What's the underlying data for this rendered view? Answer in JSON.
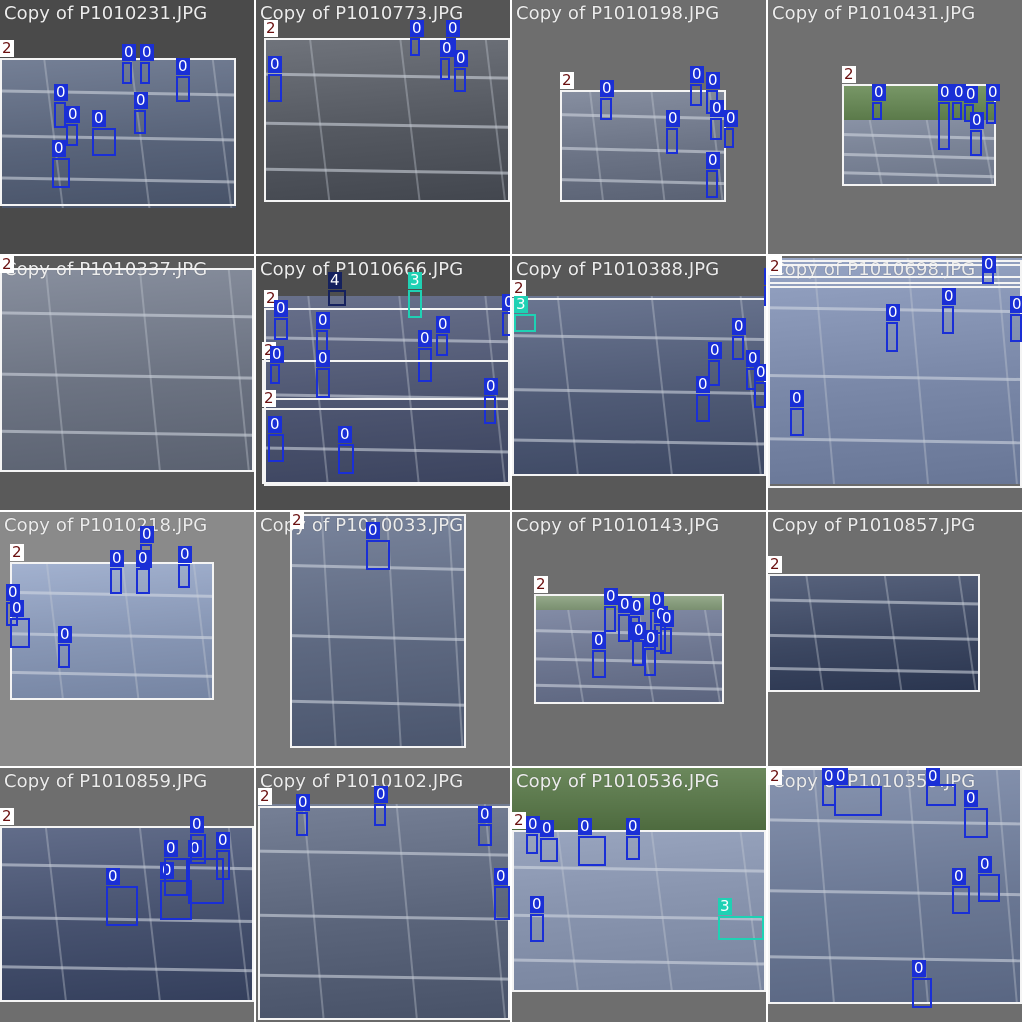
{
  "grid": {
    "columns": 4,
    "rows": 4
  },
  "classes": {
    "0": {
      "color": "#1a2fd6",
      "label_bg": "#1a2fd6",
      "label_fg": "#ffffff"
    },
    "2": {
      "color": "#f4f4f4",
      "label_bg": "#ffffff",
      "label_fg": "#6b1010"
    },
    "3": {
      "color": "#1fd1b4",
      "label_bg": "#1fd1b4",
      "label_fg": "#ffffff"
    },
    "4": {
      "color": "#15215e",
      "label_bg": "#15215e",
      "label_fg": "#ffffff"
    }
  },
  "tiles": [
    {
      "filename": "Copy of P1010231.JPG",
      "tile_bg": "#4a4a4a",
      "panel": "#59647a",
      "sky": "",
      "detections": [
        {
          "cls": "2",
          "label": "2"
        },
        {
          "cls": "0",
          "label": "0"
        },
        {
          "cls": "0",
          "label": "0"
        },
        {
          "cls": "0",
          "label": "0"
        },
        {
          "cls": "0",
          "label": "0"
        },
        {
          "cls": "0",
          "label": "0"
        },
        {
          "cls": "0",
          "label": "0"
        },
        {
          "cls": "0",
          "label": "0"
        },
        {
          "cls": "0",
          "label": "0"
        }
      ]
    },
    {
      "filename": "Copy of P1010773.JPG",
      "tile_bg": "#555555",
      "panel": "#545860",
      "sky": "",
      "detections": [
        {
          "cls": "2",
          "label": "2"
        },
        {
          "cls": "0",
          "label": "0"
        },
        {
          "cls": "0",
          "label": "0"
        },
        {
          "cls": "0",
          "label": "0"
        },
        {
          "cls": "0",
          "label": "0"
        },
        {
          "cls": "0",
          "label": "0"
        }
      ]
    },
    {
      "filename": "Copy of P1010198.JPG",
      "tile_bg": "#6e6e6e",
      "panel": "#6b7385",
      "sky": "",
      "detections": [
        {
          "cls": "2",
          "label": "2"
        },
        {
          "cls": "0",
          "label": "0"
        },
        {
          "cls": "0",
          "label": "0"
        },
        {
          "cls": "0",
          "label": "0"
        },
        {
          "cls": "0",
          "label": "0"
        },
        {
          "cls": "0",
          "label": "0"
        },
        {
          "cls": "0",
          "label": "0"
        },
        {
          "cls": "0",
          "label": "0"
        }
      ]
    },
    {
      "filename": "Copy of P1010431.JPG",
      "tile_bg": "#707070",
      "panel": "#7d8699",
      "sky": "#5b7a4a",
      "detections": [
        {
          "cls": "2",
          "label": "2"
        },
        {
          "cls": "0",
          "label": "0"
        },
        {
          "cls": "0",
          "label": "0"
        },
        {
          "cls": "0",
          "label": "0"
        },
        {
          "cls": "0",
          "label": "0"
        },
        {
          "cls": "0",
          "label": "0"
        },
        {
          "cls": "0",
          "label": "0"
        }
      ]
    },
    {
      "filename": "Copy of P1010337.JPG",
      "tile_bg": "#5a5a5a",
      "panel": "#6c7382",
      "sky": "",
      "detections": [
        {
          "cls": "2",
          "label": "2"
        }
      ]
    },
    {
      "filename": "Copy of P1010666.JPG",
      "tile_bg": "#4e4e4e",
      "panel": "#4d5570",
      "sky": "#3a4450",
      "detections": [
        {
          "cls": "2",
          "label": "2"
        },
        {
          "cls": "4",
          "label": "4"
        },
        {
          "cls": "3",
          "label": "3"
        },
        {
          "cls": "0",
          "label": "0"
        },
        {
          "cls": "0",
          "label": "0"
        },
        {
          "cls": "0",
          "label": "0"
        },
        {
          "cls": "0",
          "label": "0"
        },
        {
          "cls": "2",
          "label": "2"
        },
        {
          "cls": "0",
          "label": "0"
        },
        {
          "cls": "0",
          "label": "0"
        },
        {
          "cls": "0",
          "label": "0"
        },
        {
          "cls": "2",
          "label": "2"
        },
        {
          "cls": "0",
          "label": "0"
        },
        {
          "cls": "0",
          "label": "0"
        },
        {
          "cls": "0",
          "label": "0"
        }
      ]
    },
    {
      "filename": "Copy of P1010388.JPG",
      "tile_bg": "#585858",
      "panel": "#4f5a75",
      "sky": "",
      "detections": [
        {
          "cls": "2",
          "label": "2"
        },
        {
          "cls": "3",
          "label": "3"
        },
        {
          "cls": "0",
          "label": "0"
        },
        {
          "cls": "0",
          "label": "0"
        },
        {
          "cls": "0",
          "label": "0"
        },
        {
          "cls": "0",
          "label": "0"
        },
        {
          "cls": "0",
          "label": "0"
        },
        {
          "cls": "0",
          "label": "0"
        }
      ]
    },
    {
      "filename": "Copy of P1010698.JPG",
      "tile_bg": "#6a6a6a",
      "panel": "#7a88a8",
      "sky": "",
      "detections": [
        {
          "cls": "2",
          "label": "2"
        },
        {
          "cls": "2",
          "label": "2"
        },
        {
          "cls": "2",
          "label": "2"
        },
        {
          "cls": "0",
          "label": "0"
        },
        {
          "cls": "0",
          "label": "0"
        },
        {
          "cls": "0",
          "label": "0"
        },
        {
          "cls": "0",
          "label": "0"
        },
        {
          "cls": "0",
          "label": "0"
        }
      ]
    },
    {
      "filename": "Copy of P1010218.JPG",
      "tile_bg": "#8a8a8a",
      "panel": "#8796b4",
      "sky": "",
      "detections": [
        {
          "cls": "2",
          "label": "2"
        },
        {
          "cls": "0",
          "label": "0"
        },
        {
          "cls": "0",
          "label": "0"
        },
        {
          "cls": "0",
          "label": "0"
        },
        {
          "cls": "0",
          "label": "0"
        },
        {
          "cls": "0",
          "label": "0"
        },
        {
          "cls": "0",
          "label": "0"
        },
        {
          "cls": "0",
          "label": "0"
        }
      ]
    },
    {
      "filename": "Copy of P1010033.JPG",
      "tile_bg": "#7a7a7a",
      "panel": "#5d6880",
      "sky": "",
      "detections": [
        {
          "cls": "2",
          "label": "2"
        },
        {
          "cls": "0",
          "label": "0"
        }
      ]
    },
    {
      "filename": "Copy of P1010143.JPG",
      "tile_bg": "#6e6e6e",
      "panel": "#6d7690",
      "sky": "#7a8f70",
      "detections": [
        {
          "cls": "2",
          "label": "2"
        },
        {
          "cls": "0",
          "label": "0"
        },
        {
          "cls": "0",
          "label": "0"
        },
        {
          "cls": "0",
          "label": "0"
        },
        {
          "cls": "0",
          "label": "0"
        },
        {
          "cls": "0",
          "label": "0"
        },
        {
          "cls": "0",
          "label": "0"
        },
        {
          "cls": "0",
          "label": "0"
        },
        {
          "cls": "0",
          "label": "0"
        },
        {
          "cls": "0",
          "label": "0"
        }
      ]
    },
    {
      "filename": "Copy of P1010857.JPG",
      "tile_bg": "#6e6e6e",
      "panel": "#3c4761",
      "sky": "",
      "detections": [
        {
          "cls": "2",
          "label": "2"
        }
      ]
    },
    {
      "filename": "Copy of P1010859.JPG",
      "tile_bg": "#6e6e6e",
      "panel": "#46516e",
      "sky": "",
      "detections": [
        {
          "cls": "2",
          "label": "2"
        },
        {
          "cls": "0",
          "label": "0"
        },
        {
          "cls": "0",
          "label": "0"
        },
        {
          "cls": "0",
          "label": "0"
        },
        {
          "cls": "0",
          "label": "0"
        },
        {
          "cls": "0",
          "label": "0"
        },
        {
          "cls": "0",
          "label": "0"
        }
      ]
    },
    {
      "filename": "Copy of P1010102.JPG",
      "tile_bg": "#6a6a6a",
      "panel": "#5a647a",
      "sky": "",
      "detections": [
        {
          "cls": "2",
          "label": "2"
        },
        {
          "cls": "0",
          "label": "0"
        },
        {
          "cls": "0",
          "label": "0"
        },
        {
          "cls": "0",
          "label": "0"
        },
        {
          "cls": "0",
          "label": "0"
        }
      ]
    },
    {
      "filename": "Copy of P1010536.JPG",
      "tile_bg": "#6e6e6e",
      "panel": "#8a96b0",
      "sky": "#4d6a3e",
      "detections": [
        {
          "cls": "2",
          "label": "2"
        },
        {
          "cls": "0",
          "label": "0"
        },
        {
          "cls": "0",
          "label": "0"
        },
        {
          "cls": "0",
          "label": "0"
        },
        {
          "cls": "0",
          "label": "0"
        },
        {
          "cls": "0",
          "label": "0"
        },
        {
          "cls": "3",
          "label": "3"
        }
      ]
    },
    {
      "filename": "Copy of P1010359.JPG",
      "tile_bg": "#6e6e6e",
      "panel": "#6b7894",
      "sky": "",
      "detections": [
        {
          "cls": "2",
          "label": "2"
        },
        {
          "cls": "0",
          "label": "0"
        },
        {
          "cls": "0",
          "label": "0"
        },
        {
          "cls": "0",
          "label": "0"
        },
        {
          "cls": "0",
          "label": "0"
        },
        {
          "cls": "0",
          "label": "0"
        },
        {
          "cls": "0",
          "label": "0"
        },
        {
          "cls": "0",
          "label": "0"
        }
      ]
    }
  ]
}
